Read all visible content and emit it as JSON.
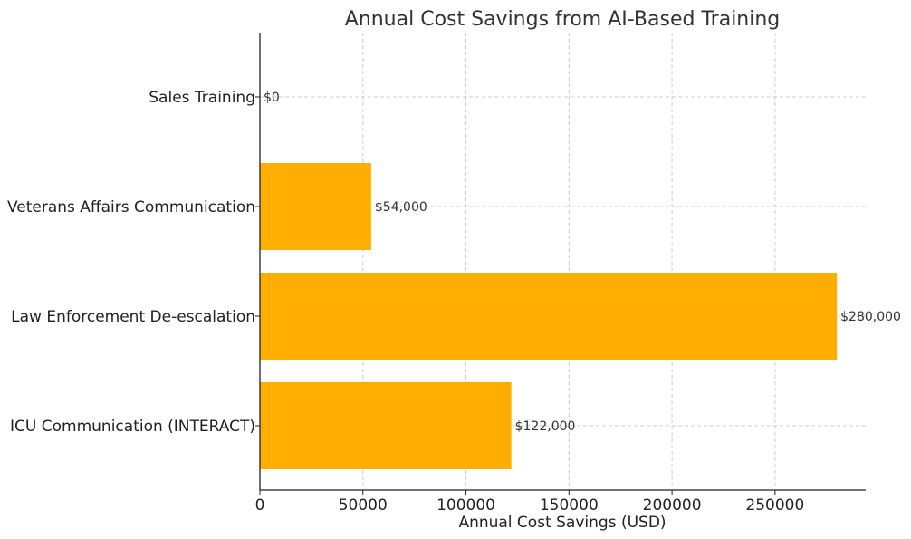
{
  "chart_data": {
    "type": "bar",
    "orientation": "horizontal",
    "title": "Annual Cost Savings from AI-Based Training",
    "xlabel": "Annual Cost Savings (USD)",
    "ylabel": "",
    "categories": [
      "Sales Training",
      "Veterans Affairs Communication",
      "Law Enforcement De-escalation",
      "ICU Communication (INTERACT)"
    ],
    "values": [
      0,
      54000,
      280000,
      122000
    ],
    "data_labels": [
      "$0",
      "$54,000",
      "$280,000",
      "$122,000"
    ],
    "xlim": [
      0,
      294000
    ],
    "xticks": [
      0,
      50000,
      100000,
      150000,
      200000,
      250000
    ],
    "xtick_labels": [
      "0",
      "50000",
      "100000",
      "150000",
      "200000",
      "250000"
    ],
    "grid": true,
    "bar_color": "#FFAE00"
  }
}
